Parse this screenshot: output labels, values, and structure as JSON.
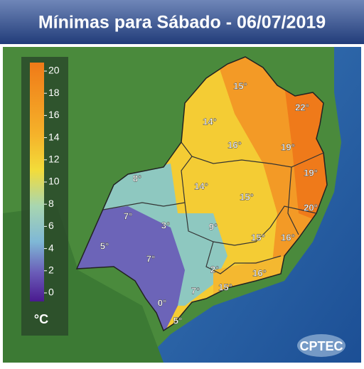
{
  "header": {
    "title": "Mínimas para Sábado - 06/07/2019"
  },
  "legend": {
    "ticks": [
      20,
      18,
      16,
      14,
      12,
      10,
      8,
      6,
      4,
      2,
      0
    ],
    "unit": "°C"
  },
  "labels": [
    "15°",
    "22°",
    "14°",
    "16°",
    "19°",
    "19°",
    "8°",
    "14°",
    "15°",
    "20°",
    "7°",
    "3°",
    "9°",
    "15°",
    "16°",
    "5°",
    "7°",
    "2°",
    "16°",
    "15°",
    "7°",
    "0°",
    "5°"
  ],
  "logo": "CPTEC"
}
